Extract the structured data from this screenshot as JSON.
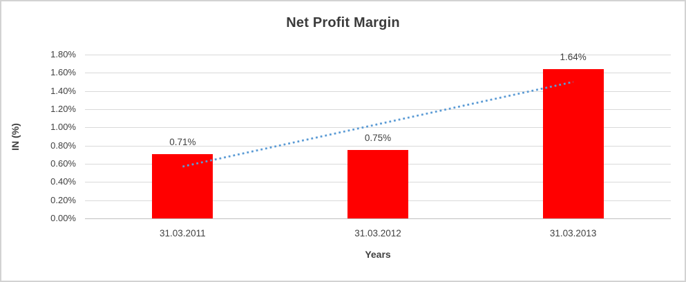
{
  "chart_data": {
    "type": "bar",
    "title": "Net Profit Margin",
    "categories": [
      "31.03.2011",
      "31.03.2012",
      "31.03.2013"
    ],
    "values": [
      0.71,
      0.75,
      1.64
    ],
    "data_labels": [
      "0.71%",
      "0.75%",
      "1.64%"
    ],
    "xlabel": "Years",
    "ylabel": "IN (%)",
    "ylim": [
      0,
      1.8
    ],
    "y_tick_step": 0.2,
    "y_ticks": [
      "0.00%",
      "0.20%",
      "0.40%",
      "0.60%",
      "0.80%",
      "1.00%",
      "1.20%",
      "1.40%",
      "1.60%",
      "1.80%"
    ],
    "grid": true,
    "legend_position": "none",
    "bar_color": "#ff0000",
    "trendline": {
      "kind": "linear",
      "style": "dotted",
      "color": "#5b9bd5",
      "start_value": 0.57,
      "end_value": 1.5
    },
    "colors": {
      "text": "#404040",
      "title_text": "#3b3b3b",
      "gridline": "#d9d9d9",
      "axis_line": "#bfbfbf",
      "canvas_border": "#d2d2d2"
    }
  }
}
